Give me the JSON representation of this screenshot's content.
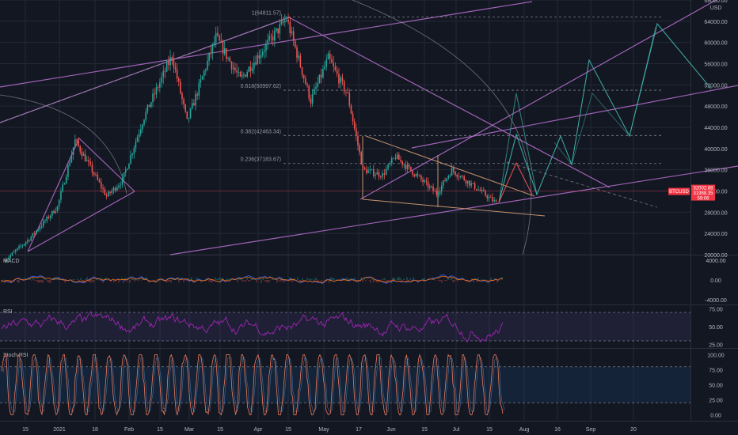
{
  "chart_data": [
    {
      "type": "candlestick",
      "currency_label": "USD",
      "ylim": [
        20000,
        68000
      ],
      "y_ticks": [
        20000,
        24000,
        28000,
        32000,
        36000,
        40000,
        44000,
        48000,
        52000,
        56000,
        60000,
        64000,
        68000
      ],
      "x_ticks": [
        "15",
        "2021",
        "18",
        "Feb",
        "15",
        "Mar",
        "15",
        "Apr",
        "15",
        "May",
        "17",
        "Jun",
        "15",
        "Jul",
        "15",
        "Aug",
        "16",
        "Sep",
        "20"
      ],
      "price_badge": {
        "symbol": "BTCUSD",
        "values": [
          "32002.88",
          "31988.35",
          "59:06"
        ]
      },
      "fib_levels": [
        {
          "label": "1(64811.57)",
          "value": 64811.57
        },
        {
          "label": "0.618(50997.62)",
          "value": 50997.62
        },
        {
          "label": "0.382(42463.34)",
          "value": 42463.34
        },
        {
          "label": "0.236(37183.67)",
          "value": 37183.67
        }
      ],
      "price_path": [
        {
          "date": "2020-12-05",
          "price": 19000
        },
        {
          "date": "2020-12-17",
          "price": 23000
        },
        {
          "date": "2020-12-31",
          "price": 29000
        },
        {
          "date": "2021-01-08",
          "price": 41500
        },
        {
          "date": "2021-01-14",
          "price": 37000
        },
        {
          "date": "2021-01-22",
          "price": 31000
        },
        {
          "date": "2021-01-29",
          "price": 34000
        },
        {
          "date": "2021-02-08",
          "price": 46000
        },
        {
          "date": "2021-02-21",
          "price": 57500
        },
        {
          "date": "2021-02-28",
          "price": 45000
        },
        {
          "date": "2021-03-13",
          "price": 61000
        },
        {
          "date": "2021-03-24",
          "price": 53000
        },
        {
          "date": "2021-04-14",
          "price": 64500
        },
        {
          "date": "2021-04-25",
          "price": 49000
        },
        {
          "date": "2021-05-03",
          "price": 57000
        },
        {
          "date": "2021-05-12",
          "price": 50000
        },
        {
          "date": "2021-05-19",
          "price": 36000
        },
        {
          "date": "2021-05-28",
          "price": 35000
        },
        {
          "date": "2021-06-03",
          "price": 38500
        },
        {
          "date": "2021-06-22",
          "price": 31500
        },
        {
          "date": "2021-06-29",
          "price": 36000
        },
        {
          "date": "2021-07-20",
          "price": 29500
        }
      ]
    },
    {
      "type": "line",
      "title": "MACD",
      "ylim": [
        -5000,
        5000
      ],
      "y_ticks": [
        "4000.00",
        "0.00",
        "-4000.00"
      ]
    },
    {
      "type": "line",
      "title": "RSI",
      "ylim": [
        20,
        80
      ],
      "y_ticks": [
        "75.00",
        "50.00",
        "25.00"
      ],
      "band": [
        30,
        70
      ]
    },
    {
      "type": "line",
      "title": "Stoch RSI",
      "ylim": [
        -10,
        110
      ],
      "y_ticks": [
        "100.00",
        "75.00",
        "50.00",
        "25.00",
        "0.00"
      ],
      "band": [
        20,
        80
      ]
    }
  ],
  "colors": {
    "background": "#131722",
    "grid": "#232838",
    "up": "#26a69a",
    "down": "#ef5350",
    "trendline": "#b870d0",
    "projection": "#3fb1a8",
    "fib": "#9598a1",
    "badge": "#f23645",
    "rsi": "#9c27b0",
    "stoch": "#f07a5c"
  }
}
